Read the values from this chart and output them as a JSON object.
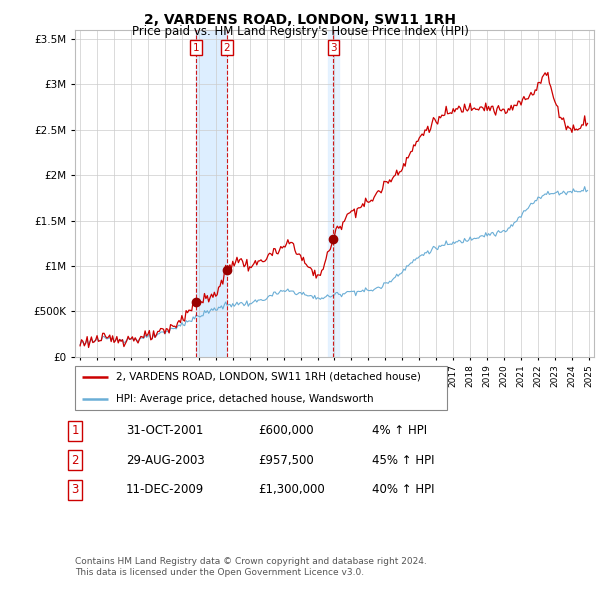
{
  "title": "2, VARDENS ROAD, LONDON, SW11 1RH",
  "subtitle": "Price paid vs. HM Land Registry's House Price Index (HPI)",
  "legend_line1": "2, VARDENS ROAD, LONDON, SW11 1RH (detached house)",
  "legend_line2": "HPI: Average price, detached house, Wandsworth",
  "footer_line1": "Contains HM Land Registry data © Crown copyright and database right 2024.",
  "footer_line2": "This data is licensed under the Open Government Licence v3.0.",
  "sales": [
    {
      "num": 1,
      "date": "31-OCT-2001",
      "price": "£600,000",
      "hpi": "4% ↑ HPI",
      "year": 2001.83
    },
    {
      "num": 2,
      "date": "29-AUG-2003",
      "price": "£957,500",
      "hpi": "45% ↑ HPI",
      "year": 2003.66
    },
    {
      "num": 3,
      "date": "11-DEC-2009",
      "price": "£1,300,000",
      "hpi": "40% ↑ HPI",
      "year": 2009.94
    }
  ],
  "sale_values": [
    600000,
    957500,
    1300000
  ],
  "sale_years": [
    2001.83,
    2003.66,
    2009.94
  ],
  "red_color": "#cc0000",
  "blue_color": "#6baed6",
  "shade_color": "#ddeeff",
  "vline_color": "#cc0000",
  "marker_color": "#990000",
  "ylim": [
    0,
    3600000
  ],
  "yticks": [
    0,
    500000,
    1000000,
    1500000,
    2000000,
    2500000,
    3000000,
    3500000
  ],
  "xlim_start": 1994.7,
  "xlim_end": 2025.3
}
